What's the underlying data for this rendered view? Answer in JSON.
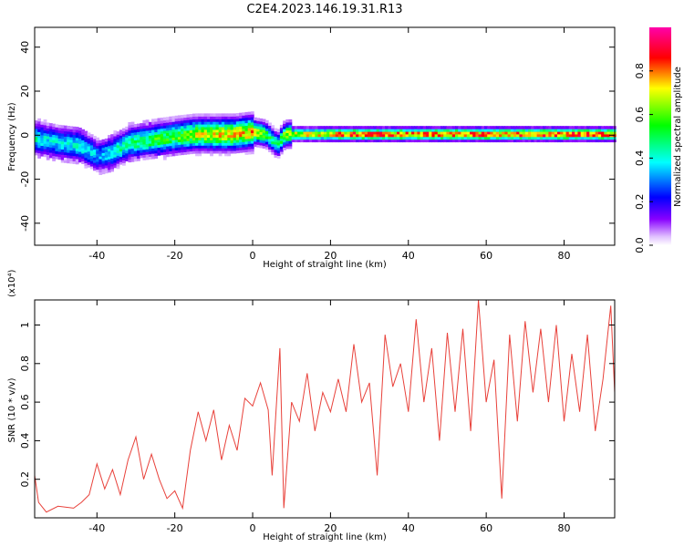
{
  "title": "C2E4.2023.146.19.31.R13",
  "chart_data": [
    {
      "type": "heatmap",
      "xlabel": "Height of straight line (km)",
      "ylabel": "Frequency (Hz)",
      "xlim": [
        -56,
        93
      ],
      "ylim": [
        -50,
        49
      ],
      "x_ticks": [
        -40,
        -20,
        0,
        20,
        40,
        60,
        80
      ],
      "y_ticks": [
        -40,
        -20,
        0,
        20,
        40
      ],
      "colorbar": {
        "label": "Normalized spectral amplitude",
        "range": [
          0,
          1
        ],
        "ticks": [
          0.0,
          0.2,
          0.4,
          0.6,
          0.8
        ],
        "colormap": [
          "#ffffff",
          "#8800ff",
          "#0000ff",
          "#00ffff",
          "#00ff00",
          "#ffff00",
          "#ff0000",
          "#ff00ff"
        ]
      },
      "ridge_frequency": {
        "height_km": [
          -56,
          -50,
          -45,
          -42,
          -40,
          -36,
          -32,
          -28,
          -24,
          -20,
          -15,
          -10,
          -5,
          0,
          3,
          5,
          6,
          8,
          15,
          25,
          40,
          60,
          80,
          93
        ],
        "freq_hz": [
          -2,
          -4,
          -5,
          -8,
          -10,
          -8,
          -4,
          -3,
          -2,
          -1,
          0,
          0,
          0,
          1,
          0,
          -3,
          -5,
          0,
          0,
          0,
          0,
          0,
          0,
          0
        ],
        "peak_amplitude": [
          0.45,
          0.4,
          0.45,
          0.4,
          0.35,
          0.45,
          0.5,
          0.55,
          0.6,
          0.6,
          0.7,
          0.75,
          0.8,
          0.8,
          0.6,
          0.5,
          0.5,
          0.7,
          0.8,
          0.9,
          0.9,
          0.9,
          0.9,
          0.9
        ]
      }
    },
    {
      "type": "line",
      "xlabel": "Height of straight line (km)",
      "ylabel": "SNR (10 * v/v)",
      "y_multiplier": "(x10⁴)",
      "xlim": [
        -56,
        93
      ],
      "ylim": [
        0,
        1.13
      ],
      "x_ticks": [
        -40,
        -20,
        0,
        20,
        40,
        60,
        80
      ],
      "y_ticks": [
        0.2,
        0.4,
        0.6,
        0.8,
        1
      ],
      "color": "#e8413a",
      "series": [
        {
          "x": [
            -56,
            -55,
            -53,
            -50,
            -46,
            -44,
            -42,
            -40,
            -38,
            -36,
            -34,
            -32,
            -30,
            -28,
            -26,
            -24,
            -22,
            -20,
            -18,
            -16,
            -14,
            -12,
            -10,
            -8,
            -6,
            -4,
            -2,
            0,
            2,
            4,
            5,
            6,
            7,
            8,
            10,
            12,
            14,
            16,
            18,
            20,
            22,
            24,
            26,
            28,
            30,
            32,
            34,
            36,
            38,
            40,
            42,
            44,
            46,
            48,
            50,
            52,
            54,
            56,
            58,
            60,
            62,
            64,
            66,
            68,
            70,
            72,
            74,
            76,
            78,
            80,
            82,
            84,
            86,
            88,
            90,
            92,
            93
          ],
          "y": [
            0.22,
            0.08,
            0.03,
            0.06,
            0.05,
            0.08,
            0.12,
            0.28,
            0.15,
            0.25,
            0.12,
            0.3,
            0.42,
            0.2,
            0.33,
            0.2,
            0.1,
            0.14,
            0.05,
            0.35,
            0.55,
            0.4,
            0.56,
            0.3,
            0.48,
            0.35,
            0.62,
            0.58,
            0.7,
            0.56,
            0.22,
            0.55,
            0.88,
            0.05,
            0.6,
            0.5,
            0.75,
            0.45,
            0.65,
            0.55,
            0.72,
            0.55,
            0.9,
            0.6,
            0.7,
            0.22,
            0.95,
            0.68,
            0.8,
            0.55,
            1.03,
            0.6,
            0.88,
            0.4,
            0.96,
            0.55,
            0.98,
            0.45,
            1.13,
            0.6,
            0.82,
            0.1,
            0.95,
            0.5,
            1.02,
            0.65,
            0.98,
            0.6,
            1.0,
            0.5,
            0.85,
            0.55,
            0.95,
            0.45,
            0.72,
            1.1,
            0.65
          ]
        }
      ]
    }
  ]
}
